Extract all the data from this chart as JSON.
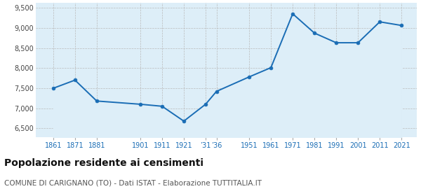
{
  "years": [
    1861,
    1871,
    1881,
    1901,
    1911,
    1921,
    1931,
    1936,
    1951,
    1961,
    1971,
    1981,
    1991,
    2001,
    2011,
    2021
  ],
  "population": [
    7497,
    7700,
    7180,
    7100,
    7050,
    6680,
    7100,
    7420,
    7780,
    8010,
    9350,
    8870,
    8630,
    8630,
    9150,
    9060
  ],
  "yticks": [
    6500,
    7000,
    7500,
    8000,
    8500,
    9000,
    9500
  ],
  "ylim": [
    6280,
    9620
  ],
  "xlim": [
    1853,
    2028
  ],
  "line_color": "#1a6db5",
  "fill_color": "#ddeef8",
  "marker_size": 3.5,
  "title": "Popolazione residente ai censimenti",
  "subtitle": "COMUNE DI CARIGNANO (TO) - Dati ISTAT - Elaborazione TUTTITALIA.IT",
  "title_fontsize": 10,
  "subtitle_fontsize": 7.5,
  "bg_color": "#ffffff",
  "grid_color": "#bbbbbb",
  "x_tick_positions": [
    1861,
    1871,
    1881,
    1901,
    1911,
    1921,
    1931,
    1936,
    1951,
    1961,
    1971,
    1981,
    1991,
    2001,
    2011,
    2021
  ],
  "x_tick_labels": [
    "1861",
    "1871",
    "1881",
    "1901",
    "1911",
    "1921",
    "’31",
    "’36",
    "1951",
    "1961",
    "1971",
    "1981",
    "1991",
    "2001",
    "2011",
    "2021"
  ]
}
